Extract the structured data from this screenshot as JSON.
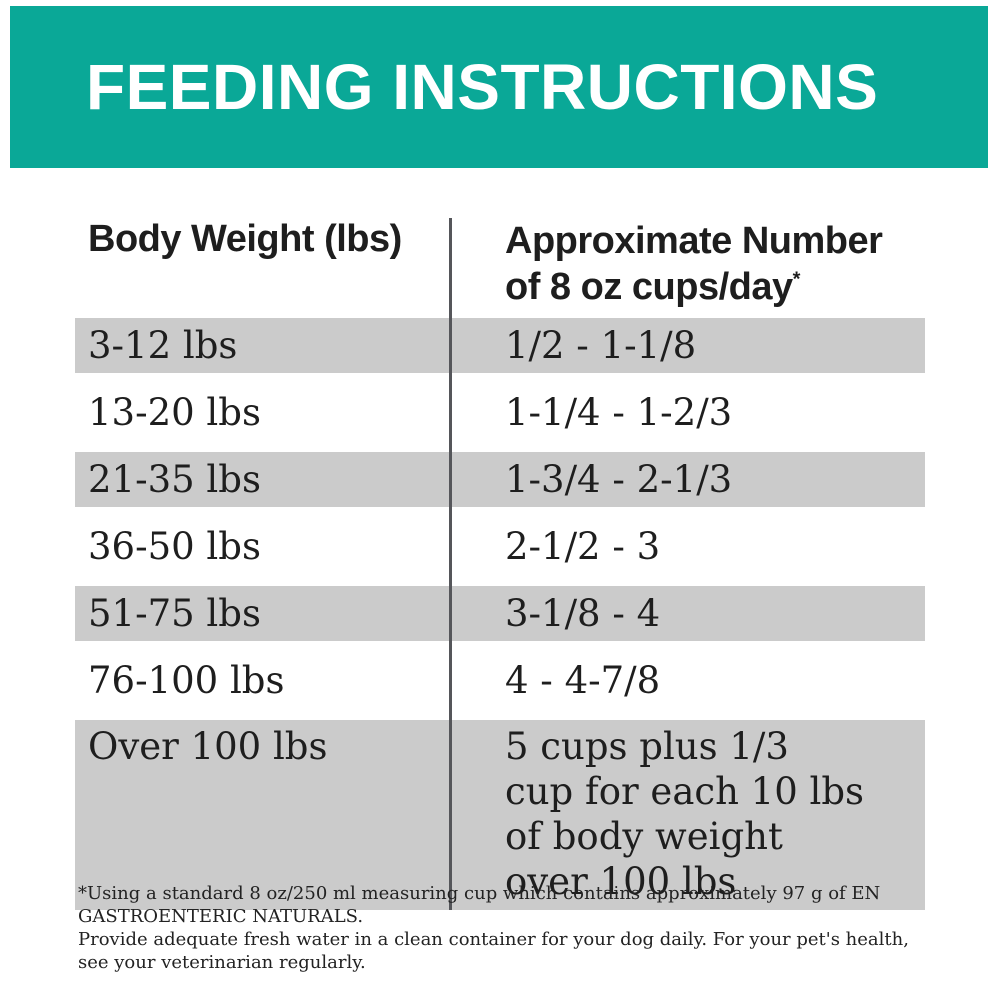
{
  "colors": {
    "teal": "#0aa897",
    "row-gray": "#cbcbcb",
    "ink": "#1e1e1e",
    "divider": "#55565a"
  },
  "header": {
    "title": "FEEDING INSTRUCTIONS"
  },
  "table": {
    "columns": [
      {
        "label": "Body Weight (lbs)"
      },
      {
        "label_line1": "Approximate Number",
        "label_line2": "of 8 oz cups/day",
        "marker": "*"
      }
    ],
    "rows": [
      {
        "weight": "3-12 lbs",
        "cups": "1/2 - 1-1/8",
        "shaded": true
      },
      {
        "weight": "13-20 lbs",
        "cups": "1-1/4 - 1-2/3",
        "shaded": false
      },
      {
        "weight": "21-35 lbs",
        "cups": "1-3/4 - 2-1/3",
        "shaded": true
      },
      {
        "weight": "36-50 lbs",
        "cups": "2-1/2 - 3",
        "shaded": false
      },
      {
        "weight": "51-75 lbs",
        "cups": "3-1/8 - 4",
        "shaded": true
      },
      {
        "weight": "76-100 lbs",
        "cups": "4 - 4-7/8",
        "shaded": false
      },
      {
        "weight": "Over 100 lbs",
        "cups": "5 cups plus 1/3 cup for each 10 lbs of body weight over 100 lbs",
        "shaded": true
      }
    ]
  },
  "footnote": {
    "line1": "*Using a standard 8 oz/250 ml measuring cup which contains approximately 97 g of EN GASTROENTERIC NATURALS.",
    "line2": "Provide adequate fresh water in a clean container for your dog daily. For your pet's health, see your veterinarian regularly."
  }
}
